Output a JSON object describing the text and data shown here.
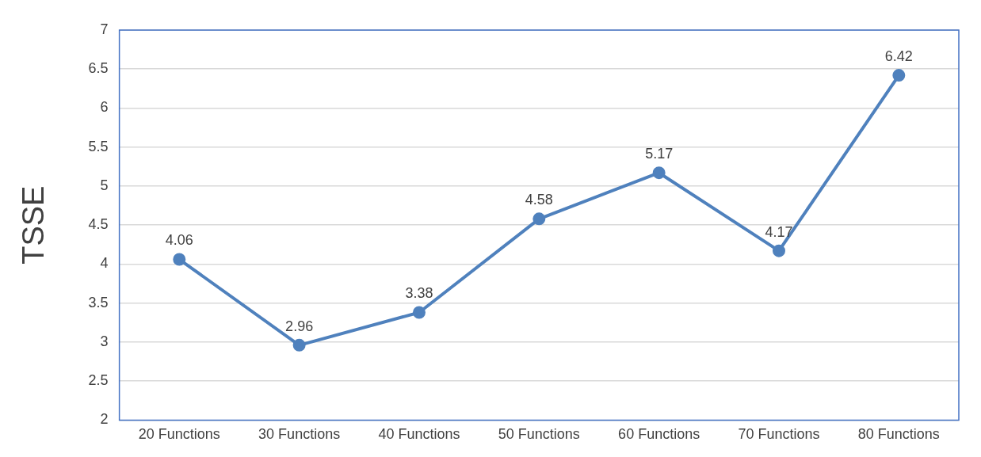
{
  "chart_data": {
    "type": "line",
    "ylabel": "TSSE",
    "categories": [
      "20 Functions",
      "30 Functions",
      "40 Functions",
      "50 Functions",
      "60 Functions",
      "70 Functions",
      "80 Functions"
    ],
    "series": [
      {
        "color": "#4f81bd",
        "values": [
          4.06,
          2.96,
          3.38,
          4.58,
          5.17,
          4.17,
          6.42
        ]
      }
    ],
    "ylim": [
      2,
      7
    ],
    "yticks": [
      2,
      2.5,
      3,
      3.5,
      4,
      4.5,
      5,
      5.5,
      6,
      6.5,
      7
    ],
    "grid": "y",
    "legend": false,
    "marker": "circle",
    "line_style": "solid",
    "data_labels": true
  }
}
